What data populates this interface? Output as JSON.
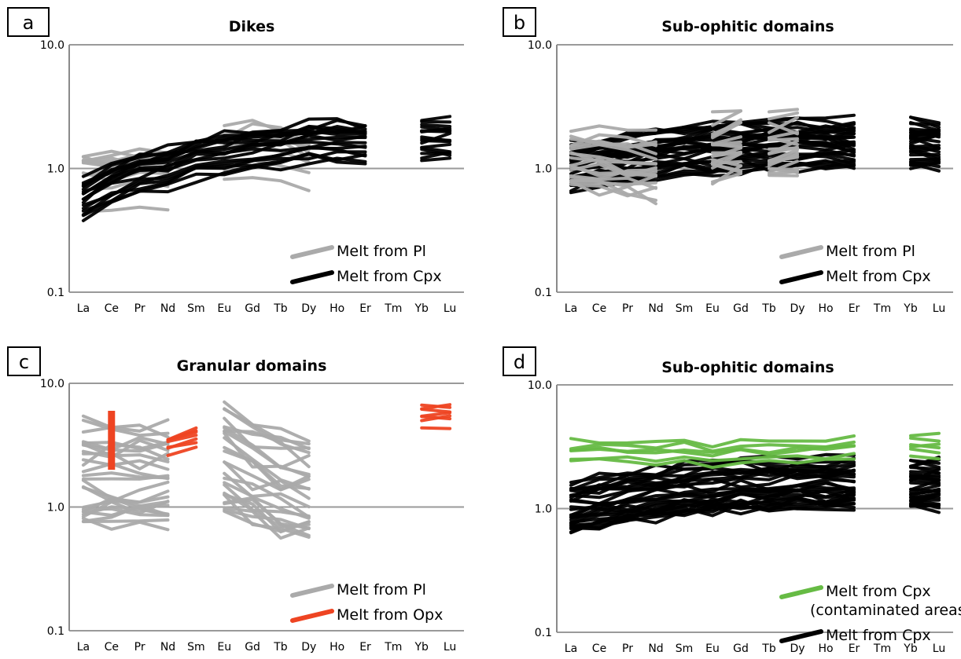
{
  "chart_data": [
    {
      "panel": "a",
      "type": "line",
      "title": "Dikes",
      "x": [
        "La",
        "Ce",
        "Pr",
        "Nd",
        "Sm",
        "Eu",
        "Gd",
        "Tb",
        "Dy",
        "Ho",
        "Er",
        "Tm",
        "Yb",
        "Lu"
      ],
      "y_ticks": [
        "10.0",
        "1.0",
        "0.1"
      ],
      "ylim": [
        0.1,
        10
      ],
      "yscale": "log",
      "grid": "major horizontal",
      "legend_position": "bottom-right",
      "legend": [
        {
          "label": "Melt from Pl",
          "color": "#aaaaaa"
        },
        {
          "label": "Melt from Cpx",
          "color": "#000000"
        }
      ],
      "groups": [
        {
          "name": "Melt from Pl",
          "color": "#aaaaaa",
          "count": 12,
          "segments": [
            [
              0,
              3
            ],
            [
              5,
              8
            ]
          ],
          "profile": [
            0.78,
            0.8,
            0.82,
            0.82,
            null,
            1.25,
            1.4,
            1.3,
            1.0,
            null,
            null,
            null,
            null,
            null
          ],
          "spread": 0.22
        },
        {
          "name": "Melt from Cpx",
          "color": "#000000",
          "count": 18,
          "segments": [
            [
              0,
              10
            ],
            [
              12,
              13
            ]
          ],
          "profile": [
            0.55,
            0.75,
            0.9,
            1.0,
            1.2,
            1.3,
            1.4,
            1.45,
            1.6,
            1.6,
            1.6,
            null,
            1.7,
            1.7
          ],
          "spread": 0.18
        }
      ]
    },
    {
      "panel": "b",
      "type": "line",
      "title": "Sub-ophitic domains",
      "x": [
        "La",
        "Ce",
        "Pr",
        "Nd",
        "Sm",
        "Eu",
        "Gd",
        "Tb",
        "Dy",
        "Ho",
        "Er",
        "Tm",
        "Yb",
        "Lu"
      ],
      "y_ticks": [
        "10.0",
        "1.0",
        "0.1"
      ],
      "ylim": [
        0.1,
        10
      ],
      "yscale": "log",
      "grid": "major horizontal",
      "legend_position": "bottom-right",
      "legend": [
        {
          "label": "Melt from Pl",
          "color": "#aaaaaa"
        },
        {
          "label": "Melt from Cpx",
          "color": "#000000"
        }
      ],
      "groups": [
        {
          "name": "Melt from Cpx",
          "color": "#000000",
          "count": 30,
          "segments": [
            [
              0,
              10
            ],
            [
              12,
              13
            ]
          ],
          "profile": [
            1.05,
            1.15,
            1.25,
            1.35,
            1.45,
            1.5,
            1.55,
            1.55,
            1.6,
            1.6,
            1.6,
            null,
            1.6,
            1.6
          ],
          "spread": 0.2
        },
        {
          "name": "Melt from Pl",
          "color": "#aaaaaa",
          "count": 20,
          "segments": [
            [
              0,
              3
            ],
            [
              5,
              6
            ],
            [
              7,
              8
            ]
          ],
          "profile": [
            1.2,
            1.15,
            1.1,
            1.05,
            null,
            1.5,
            1.6,
            1.45,
            1.55,
            null,
            null,
            null,
            null,
            null
          ],
          "spread": 0.28
        }
      ]
    },
    {
      "panel": "c",
      "type": "line",
      "title": "Granular domains",
      "x": [
        "La",
        "Ce",
        "Pr",
        "Nd",
        "Sm",
        "Eu",
        "Gd",
        "Tb",
        "Dy",
        "Ho",
        "Er",
        "Tm",
        "Yb",
        "Lu"
      ],
      "y_ticks": [
        "10.0",
        "1.0",
        "0.1"
      ],
      "ylim": [
        0.1,
        10
      ],
      "yscale": "log",
      "grid": "major horizontal",
      "legend_position": "bottom-right",
      "legend": [
        {
          "label": "Melt from Pl",
          "color": "#aaaaaa"
        },
        {
          "label": "Melt from Opx",
          "color": "#ee4422"
        }
      ],
      "groups": [
        {
          "name": "Melt from Pl",
          "color": "#aaaaaa",
          "count": 26,
          "segments": [
            [
              0,
              3
            ],
            [
              5,
              8
            ]
          ],
          "profile": [
            2.0,
            2.0,
            2.0,
            2.0,
            null,
            2.8,
            2.0,
            1.6,
            1.5,
            null,
            null,
            null,
            null,
            null
          ],
          "spread": 0.4
        },
        {
          "name": "Melt from Opx",
          "color": "#ee4422",
          "count": 7,
          "segments": [
            [
              3,
              4
            ],
            [
              12,
              13
            ]
          ],
          "profile": [
            null,
            null,
            null,
            3.1,
            3.6,
            null,
            null,
            null,
            null,
            null,
            null,
            null,
            5.3,
            5.5
          ],
          "spread": 0.1
        },
        {
          "name": "Melt from Opx (Ce)",
          "color": "#ee4422",
          "count": 1,
          "vertical": {
            "x": 1,
            "y_low": 2.0,
            "y_high": 6.0
          }
        }
      ]
    },
    {
      "panel": "d",
      "type": "line",
      "title": "Sub-ophitic domains",
      "x": [
        "La",
        "Ce",
        "Pr",
        "Nd",
        "Sm",
        "Eu",
        "Gd",
        "Tb",
        "Dy",
        "Ho",
        "Er",
        "Tm",
        "Yb",
        "Lu"
      ],
      "y_ticks": [
        "10.0",
        "1.0",
        "0.1"
      ],
      "ylim": [
        0.1,
        10
      ],
      "yscale": "log",
      "grid": "major horizontal",
      "legend_position": "bottom-right",
      "legend": [
        {
          "label": "Melt from Cpx",
          "sublabel": "(contaminated areas)",
          "color": "#66bb44"
        },
        {
          "label": "Melt from Cpx",
          "color": "#000000"
        }
      ],
      "groups": [
        {
          "name": "Melt from Cpx",
          "color": "#000000",
          "count": 30,
          "segments": [
            [
              0,
              10
            ],
            [
              12,
              13
            ]
          ],
          "profile": [
            1.05,
            1.15,
            1.25,
            1.35,
            1.45,
            1.5,
            1.55,
            1.55,
            1.6,
            1.6,
            1.6,
            null,
            1.6,
            1.6
          ],
          "spread": 0.2
        },
        {
          "name": "Melt from Cpx (contaminated areas)",
          "color": "#66bb44",
          "count": 6,
          "segments": [
            [
              0,
              10
            ],
            [
              12,
              13
            ]
          ],
          "profile": [
            3.0,
            3.05,
            3.0,
            3.0,
            3.1,
            2.75,
            3.1,
            2.95,
            3.1,
            3.15,
            3.2,
            null,
            3.4,
            3.3
          ],
          "spread": 0.1
        }
      ]
    }
  ]
}
